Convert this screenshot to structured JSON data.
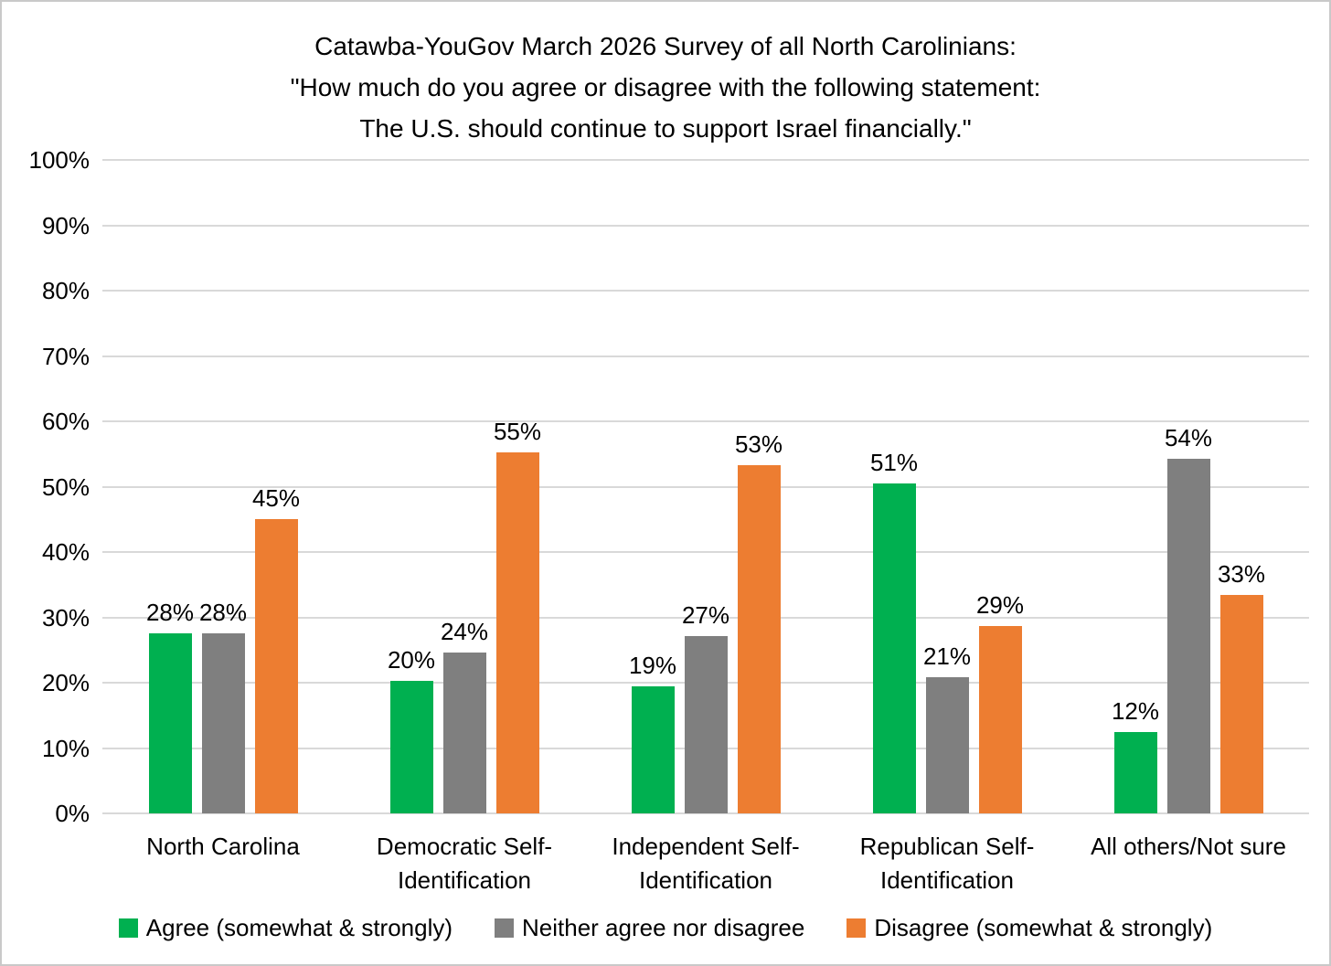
{
  "title": {
    "line1": "Catawba-YouGov March 2026 Survey of all North Carolinians:",
    "line2": "\"How much do you agree or disagree with the following statement:",
    "line3": "The U.S. should continue to support Israel financially.\""
  },
  "y_axis": {
    "min": 0,
    "max": 100,
    "step": 10,
    "tick_labels": [
      "0%",
      "10%",
      "20%",
      "30%",
      "40%",
      "50%",
      "60%",
      "70%",
      "80%",
      "90%",
      "100%"
    ]
  },
  "chart_data": {
    "type": "bar",
    "title": "Catawba-YouGov March 2026 Survey of all North Carolinians: \"How much do you agree or disagree with the following statement: The U.S. should continue to support Israel financially.\"",
    "categories": [
      "North Carolina",
      "Democratic Self-Identification",
      "Independent Self-Identification",
      "Republican Self-Identification",
      "All others/Not sure"
    ],
    "series": [
      {
        "name": "Agree (somewhat & strongly)",
        "color": "#00B050",
        "values": [
          28,
          20,
          19,
          51,
          12
        ],
        "data_labels": [
          "28%",
          "20%",
          "19%",
          "51%",
          "12%"
        ],
        "bar_heights_pct": [
          27.5,
          20.3,
          19.4,
          50.5,
          12.4
        ]
      },
      {
        "name": "Neither agree nor disagree",
        "color": "#7F7F7F",
        "values": [
          28,
          24,
          27,
          21,
          54
        ],
        "data_labels": [
          "28%",
          "24%",
          "27%",
          "21%",
          "54%"
        ],
        "bar_heights_pct": [
          27.5,
          24.6,
          27.2,
          20.8,
          54.3
        ]
      },
      {
        "name": "Disagree (somewhat & strongly)",
        "color": "#ED7D31",
        "values": [
          45,
          55,
          53,
          29,
          33
        ],
        "data_labels": [
          "45%",
          "55%",
          "53%",
          "29%",
          "33%"
        ],
        "bar_heights_pct": [
          45.0,
          55.3,
          53.3,
          28.7,
          33.4
        ]
      }
    ],
    "ylim": [
      0,
      100
    ],
    "grid": true,
    "legend_position": "bottom",
    "data_label_suffix": "%"
  },
  "legend": [
    {
      "label": "Agree (somewhat & strongly)",
      "color": "#00B050"
    },
    {
      "label": "Neither agree nor disagree",
      "color": "#7F7F7F"
    },
    {
      "label": "Disagree (somewhat & strongly)",
      "color": "#ED7D31"
    }
  ],
  "colors": {
    "background": "#FFFFFF",
    "gridline": "#D9D9D9",
    "text": "#000000",
    "figure_border": "#C9C9C9"
  }
}
